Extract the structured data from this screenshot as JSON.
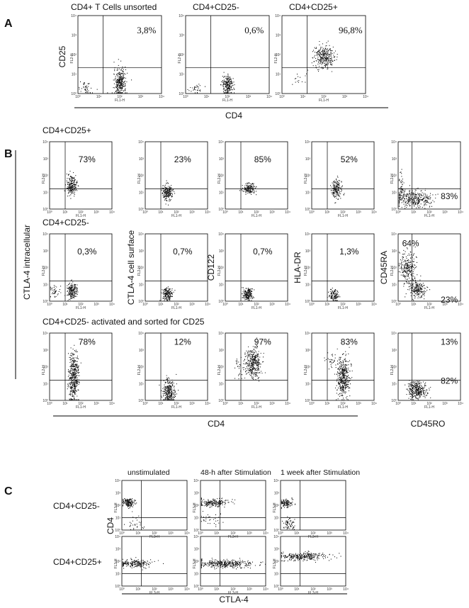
{
  "decade_ticks": [
    "10⁰",
    "10¹",
    "10²",
    "10³",
    "10⁴"
  ],
  "channels": {
    "fl1": "FL1-H",
    "fl2": "FL2-H",
    "fl3": "FL3-H"
  },
  "panel_a": {
    "label": "A",
    "plot_titles": [
      "CD4+ T Cells unsorted",
      "CD4+CD25-",
      "CD4+CD25+"
    ],
    "percentages": [
      "3,8%",
      "0,6%",
      "96,8%"
    ],
    "y_label": "CD25",
    "x_label": "CD4"
  },
  "panel_b": {
    "label": "B",
    "row_titles": [
      "CD4+CD25+",
      "CD4+CD25-",
      "CD4+CD25- activated and sorted for CD25"
    ],
    "y_label": "CTLA-4 intracellular",
    "column_labels": [
      "CTLA-4 cell surface",
      "CD122",
      "HLA-DR",
      "CD45RA"
    ],
    "percentages": [
      [
        "73%",
        "23%",
        "85%",
        "52%",
        "83%"
      ],
      [
        "0,3%",
        "0,7%",
        "0,7%",
        "1,3%",
        "64%",
        "23%"
      ],
      [
        "78%",
        "12%",
        "97%",
        "83%",
        "13%",
        "82%"
      ]
    ],
    "x_label": "CD4",
    "x_label_last": "CD45RO"
  },
  "panel_c": {
    "label": "C",
    "column_titles": [
      "unstimulated",
      "48-h after Stimulation",
      "1 week after Stimulation"
    ],
    "row_titles": [
      "CD4+CD25-",
      "CD4+CD25+"
    ],
    "y_label": "CD4",
    "x_label": "CTLA-4"
  }
}
